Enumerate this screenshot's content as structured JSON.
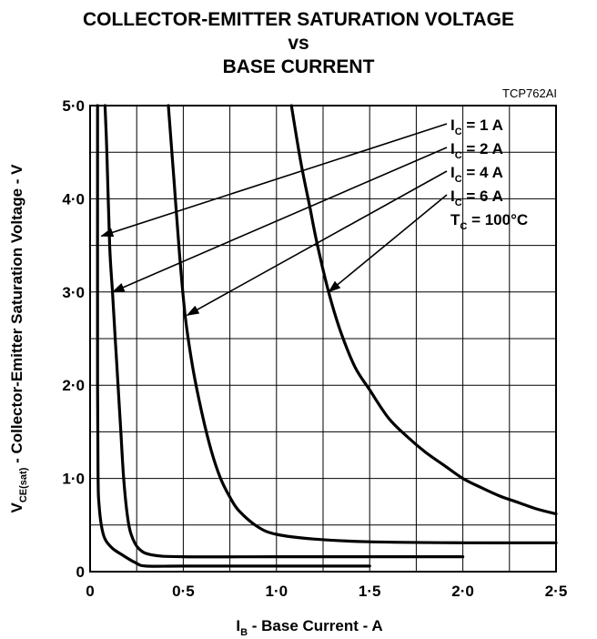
{
  "chart_data": {
    "type": "line",
    "title_lines": [
      "COLLECTOR-EMITTER SATURATION VOLTAGE",
      "vs",
      "BASE CURRENT"
    ],
    "figure_code": "TCP762AI",
    "xlabel": {
      "main": "I",
      "sub": "B",
      "rest": " - Base Current - A"
    },
    "ylabel": {
      "main": "V",
      "sub": "CE(sat)",
      "rest": " - Collector-Emitter Saturation Voltage - V"
    },
    "xlim": [
      0,
      2.5
    ],
    "ylim": [
      0,
      5
    ],
    "x_ticks": [
      {
        "value": 0,
        "label": "0"
      },
      {
        "value": 0.5,
        "label": "0·5"
      },
      {
        "value": 1.0,
        "label": "1·0"
      },
      {
        "value": 1.5,
        "label": "1·5"
      },
      {
        "value": 2.0,
        "label": "2·0"
      },
      {
        "value": 2.5,
        "label": "2·5"
      }
    ],
    "y_ticks": [
      {
        "value": 0,
        "label": "0"
      },
      {
        "value": 1.0,
        "label": "1·0"
      },
      {
        "value": 2.0,
        "label": "2·0"
      },
      {
        "value": 3.0,
        "label": "3·0"
      },
      {
        "value": 4.0,
        "label": "4·0"
      },
      {
        "value": 5.0,
        "label": "5·0"
      }
    ],
    "grid": true,
    "x_grid_step": 0.25,
    "y_grid_step": 0.5,
    "series": [
      {
        "name": "I_C = 1 A",
        "label": {
          "main": "I",
          "sub": "C",
          "rest": " = 1 A"
        },
        "points": [
          [
            0.04,
            5.0
          ],
          [
            0.04,
            2.0
          ],
          [
            0.043,
            1.0
          ],
          [
            0.047,
            0.75
          ],
          [
            0.06,
            0.5
          ],
          [
            0.08,
            0.35
          ],
          [
            0.12,
            0.25
          ],
          [
            0.18,
            0.17
          ],
          [
            0.24,
            0.1
          ],
          [
            0.3,
            0.06
          ],
          [
            0.5,
            0.06
          ],
          [
            1.0,
            0.06
          ],
          [
            1.5,
            0.06
          ]
        ],
        "arrow_point": [
          0.06,
          3.6
        ]
      },
      {
        "name": "I_C = 2 A",
        "label": {
          "main": "I",
          "sub": "C",
          "rest": " = 2 A"
        },
        "points": [
          [
            0.08,
            5.0
          ],
          [
            0.09,
            4.5
          ],
          [
            0.105,
            3.5
          ],
          [
            0.12,
            3.0
          ],
          [
            0.135,
            2.5
          ],
          [
            0.15,
            2.0
          ],
          [
            0.165,
            1.5
          ],
          [
            0.18,
            1.0
          ],
          [
            0.2,
            0.6
          ],
          [
            0.22,
            0.4
          ],
          [
            0.26,
            0.25
          ],
          [
            0.33,
            0.18
          ],
          [
            0.5,
            0.16
          ],
          [
            1.0,
            0.16
          ],
          [
            1.5,
            0.16
          ],
          [
            2.0,
            0.16
          ]
        ],
        "arrow_point": [
          0.12,
          3.0
        ]
      },
      {
        "name": "I_C = 4 A",
        "label": {
          "main": "I",
          "sub": "C",
          "rest": " = 4 A"
        },
        "points": [
          [
            0.42,
            5.0
          ],
          [
            0.45,
            4.2
          ],
          [
            0.48,
            3.4
          ],
          [
            0.51,
            2.75
          ],
          [
            0.55,
            2.2
          ],
          [
            0.6,
            1.7
          ],
          [
            0.65,
            1.3
          ],
          [
            0.7,
            1.0
          ],
          [
            0.75,
            0.8
          ],
          [
            0.8,
            0.65
          ],
          [
            0.9,
            0.48
          ],
          [
            1.0,
            0.4
          ],
          [
            1.2,
            0.35
          ],
          [
            1.5,
            0.32
          ],
          [
            2.0,
            0.31
          ],
          [
            2.5,
            0.31
          ]
        ],
        "arrow_point": [
          0.52,
          2.75
        ]
      },
      {
        "name": "I_C = 6 A",
        "label": {
          "main": "I",
          "sub": "C",
          "rest": " = 6 A"
        },
        "points": [
          [
            1.08,
            5.0
          ],
          [
            1.13,
            4.4
          ],
          [
            1.18,
            3.9
          ],
          [
            1.22,
            3.5
          ],
          [
            1.28,
            3.0
          ],
          [
            1.34,
            2.6
          ],
          [
            1.42,
            2.2
          ],
          [
            1.5,
            1.95
          ],
          [
            1.6,
            1.65
          ],
          [
            1.7,
            1.45
          ],
          [
            1.8,
            1.28
          ],
          [
            1.9,
            1.14
          ],
          [
            2.0,
            1.0
          ],
          [
            2.1,
            0.9
          ],
          [
            2.2,
            0.81
          ],
          [
            2.3,
            0.74
          ],
          [
            2.4,
            0.67
          ],
          [
            2.5,
            0.62
          ]
        ],
        "arrow_point": [
          1.28,
          3.0
        ]
      }
    ],
    "condition_label": {
      "main": "T",
      "sub": "C",
      "rest": " = 100°C"
    }
  }
}
